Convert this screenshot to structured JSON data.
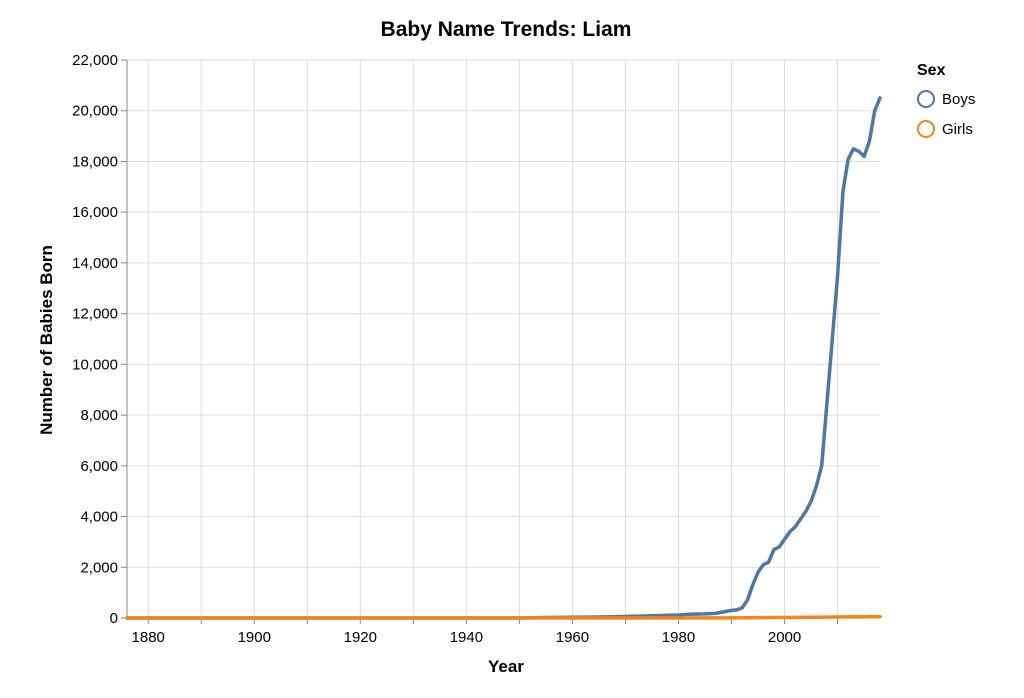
{
  "chart_data": {
    "type": "line",
    "title": "Baby Name Trends: Liam",
    "xlabel": "Year",
    "ylabel": "Number of Babies Born",
    "xlim": [
      1876,
      2018
    ],
    "ylim": [
      0,
      22000
    ],
    "x_ticks": [
      "1880",
      "1900",
      "1920",
      "1940",
      "1960",
      "1980",
      "2000"
    ],
    "y_ticks": [
      "0",
      "2,000",
      "4,000",
      "6,000",
      "8,000",
      "10,000",
      "12,000",
      "14,000",
      "16,000",
      "18,000",
      "20,000",
      "22,000"
    ],
    "grid": true,
    "legend": {
      "title": "Sex",
      "position": "top-right"
    },
    "series": [
      {
        "name": "Boys",
        "color": "#4c78a8",
        "points": [
          [
            1876,
            0
          ],
          [
            1950,
            0
          ],
          [
            1955,
            20
          ],
          [
            1960,
            30
          ],
          [
            1965,
            40
          ],
          [
            1970,
            60
          ],
          [
            1975,
            90
          ],
          [
            1980,
            120
          ],
          [
            1982,
            150
          ],
          [
            1985,
            160
          ],
          [
            1987,
            180
          ],
          [
            1989,
            260
          ],
          [
            1990,
            300
          ],
          [
            1991,
            320
          ],
          [
            1992,
            400
          ],
          [
            1993,
            700
          ],
          [
            1994,
            1300
          ],
          [
            1995,
            1800
          ],
          [
            1996,
            2100
          ],
          [
            1997,
            2200
          ],
          [
            1998,
            2700
          ],
          [
            1999,
            2800
          ],
          [
            2000,
            3100
          ],
          [
            2001,
            3400
          ],
          [
            2002,
            3600
          ],
          [
            2003,
            3900
          ],
          [
            2004,
            4200
          ],
          [
            2005,
            4600
          ],
          [
            2006,
            5200
          ],
          [
            2007,
            6000
          ],
          [
            2008,
            8500
          ],
          [
            2009,
            11000
          ],
          [
            2010,
            13500
          ],
          [
            2011,
            16800
          ],
          [
            2012,
            18100
          ],
          [
            2013,
            18500
          ],
          [
            2014,
            18400
          ],
          [
            2015,
            18200
          ],
          [
            2016,
            18800
          ],
          [
            2017,
            20000
          ],
          [
            2018,
            20500
          ]
        ]
      },
      {
        "name": "Girls",
        "color": "#f58518",
        "points": [
          [
            1876,
            0
          ],
          [
            1960,
            0
          ],
          [
            1990,
            5
          ],
          [
            2000,
            20
          ],
          [
            2005,
            30
          ],
          [
            2010,
            40
          ],
          [
            2013,
            50
          ],
          [
            2015,
            45
          ],
          [
            2016,
            60
          ],
          [
            2017,
            55
          ],
          [
            2018,
            50
          ]
        ]
      }
    ]
  }
}
